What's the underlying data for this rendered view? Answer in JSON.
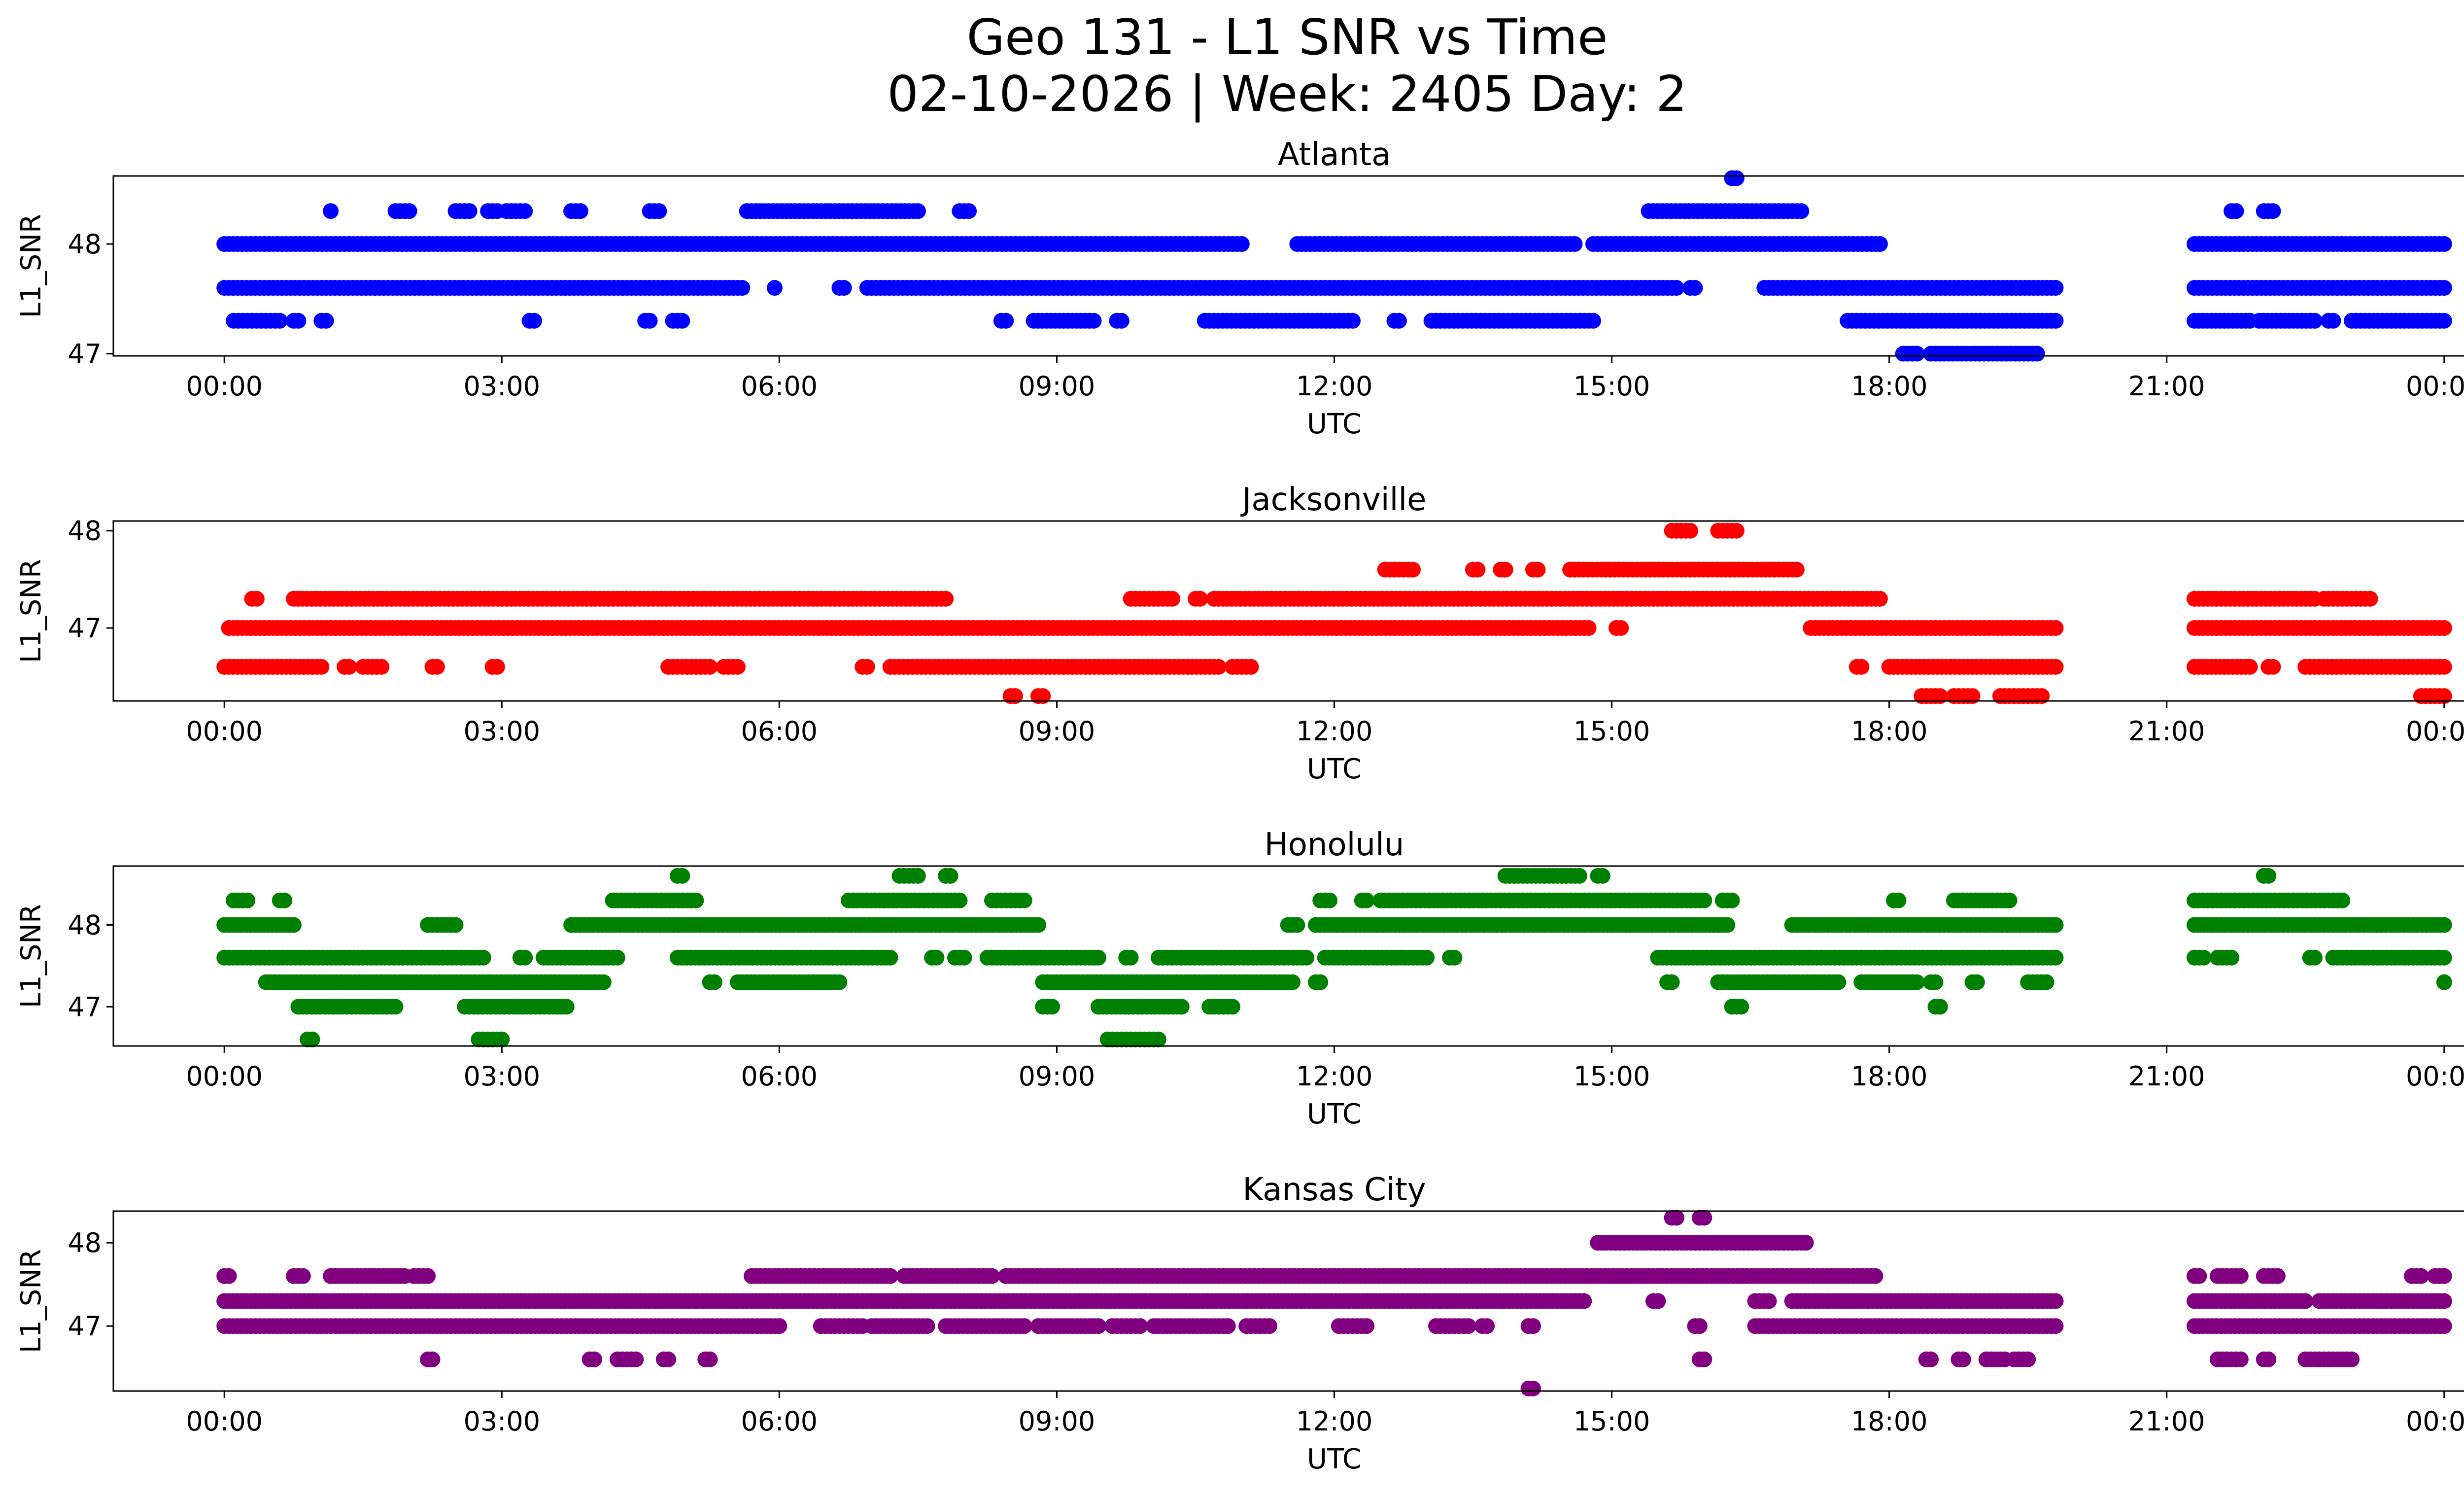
{
  "chart_data": {
    "type": "scatter",
    "title": "Geo 131 - L1 SNR vs Time",
    "subtitle": "02-10-2026 | Week: 2405 Day: 2",
    "xlabel": "UTC",
    "ylabel": "L1_SNR",
    "x_ticks": [
      "00:00",
      "03:00",
      "06:00",
      "09:00",
      "12:00",
      "15:00",
      "18:00",
      "21:00",
      "00:00"
    ],
    "x_range_hours": [
      -1.2,
      25.2
    ],
    "panels": [
      {
        "title": "Atlanta",
        "color": "#0000ff",
        "ylim": [
          46.98,
          48.62
        ],
        "yticks": [
          47,
          48
        ],
        "runs": [
          {
            "y": 48.3,
            "ranges": [
              [
                1.15,
                1.15
              ],
              [
                1.85,
                2.0
              ],
              [
                2.5,
                2.65
              ],
              [
                2.85,
                2.95
              ],
              [
                3.05,
                3.25
              ],
              [
                3.75,
                3.85
              ],
              [
                4.6,
                4.7
              ],
              [
                5.65,
                7.5
              ],
              [
                7.95,
                8.05
              ],
              [
                15.4,
                17.05
              ],
              [
                21.7,
                21.75
              ],
              [
                22.05,
                22.15
              ]
            ]
          },
          {
            "y": 48.6,
            "ranges": [
              [
                16.3,
                16.35
              ]
            ]
          },
          {
            "y": 48.0,
            "ranges": [
              [
                0.0,
                11.0
              ],
              [
                11.6,
                14.6
              ],
              [
                14.8,
                17.9
              ],
              [
                21.3,
                24.0
              ]
            ]
          },
          {
            "y": 47.6,
            "ranges": [
              [
                0.0,
                5.6
              ],
              [
                5.95,
                5.95
              ],
              [
                6.65,
                6.7
              ],
              [
                6.95,
                15.7
              ],
              [
                15.85,
                15.9
              ],
              [
                16.65,
                19.8
              ],
              [
                21.3,
                24.0
              ]
            ]
          },
          {
            "y": 47.3,
            "ranges": [
              [
                0.1,
                0.6
              ],
              [
                0.75,
                0.8
              ],
              [
                1.05,
                1.1
              ],
              [
                3.3,
                3.35
              ],
              [
                4.55,
                4.6
              ],
              [
                4.85,
                4.95
              ],
              [
                8.4,
                8.45
              ],
              [
                8.75,
                9.4
              ],
              [
                9.65,
                9.7
              ],
              [
                10.6,
                12.2
              ],
              [
                12.65,
                12.7
              ],
              [
                13.05,
                14.8
              ],
              [
                17.55,
                19.8
              ],
              [
                21.3,
                21.9
              ],
              [
                22.0,
                22.6
              ],
              [
                22.75,
                22.8
              ],
              [
                23.0,
                24.0
              ]
            ]
          },
          {
            "y": 47.0,
            "ranges": [
              [
                18.15,
                18.3
              ],
              [
                18.45,
                19.6
              ]
            ]
          }
        ]
      },
      {
        "title": "Jacksonville",
        "color": "#ff0000",
        "ylim": [
          46.25,
          48.1
        ],
        "yticks": [
          47,
          48
        ],
        "runs": [
          {
            "y": 48.0,
            "ranges": [
              [
                15.65,
                15.85
              ],
              [
                16.15,
                16.35
              ]
            ]
          },
          {
            "y": 47.6,
            "ranges": [
              [
                12.55,
                12.85
              ],
              [
                13.5,
                13.55
              ],
              [
                13.8,
                13.85
              ],
              [
                14.15,
                14.2
              ],
              [
                14.55,
                17.0
              ]
            ]
          },
          {
            "y": 47.3,
            "ranges": [
              [
                0.3,
                0.35
              ],
              [
                0.75,
                7.8
              ],
              [
                9.8,
                10.25
              ],
              [
                10.5,
                10.55
              ],
              [
                10.7,
                17.9
              ],
              [
                21.3,
                22.6
              ],
              [
                22.7,
                23.2
              ]
            ]
          },
          {
            "y": 47.0,
            "ranges": [
              [
                0.05,
                12.65
              ],
              [
                12.7,
                14.75
              ],
              [
                15.05,
                15.1
              ],
              [
                17.15,
                19.8
              ],
              [
                21.3,
                24.0
              ]
            ]
          },
          {
            "y": 46.6,
            "ranges": [
              [
                0.0,
                1.05
              ],
              [
                1.3,
                1.35
              ],
              [
                1.5,
                1.7
              ],
              [
                2.25,
                2.3
              ],
              [
                2.9,
                2.95
              ],
              [
                4.8,
                5.25
              ],
              [
                5.4,
                5.55
              ],
              [
                6.9,
                6.95
              ],
              [
                7.2,
                10.75
              ],
              [
                10.9,
                11.1
              ],
              [
                17.65,
                17.7
              ],
              [
                18.0,
                19.8
              ],
              [
                21.3,
                21.9
              ],
              [
                22.1,
                22.15
              ],
              [
                22.5,
                24.0
              ]
            ]
          },
          {
            "y": 46.3,
            "ranges": [
              [
                8.5,
                8.55
              ],
              [
                8.8,
                8.85
              ],
              [
                18.35,
                18.55
              ],
              [
                18.7,
                18.9
              ],
              [
                19.2,
                19.65
              ],
              [
                23.75,
                24.0
              ]
            ]
          }
        ]
      },
      {
        "title": "Honolulu",
        "color": "#008000",
        "ylim": [
          46.52,
          48.72
        ],
        "yticks": [
          47,
          48
        ],
        "runs": [
          {
            "y": 48.6,
            "ranges": [
              [
                4.9,
                4.95
              ],
              [
                7.3,
                7.5
              ],
              [
                7.8,
                7.85
              ],
              [
                13.85,
                14.65
              ],
              [
                14.85,
                14.9
              ],
              [
                22.05,
                22.1
              ]
            ]
          },
          {
            "y": 48.3,
            "ranges": [
              [
                0.1,
                0.25
              ],
              [
                0.6,
                0.65
              ],
              [
                4.2,
                5.1
              ],
              [
                6.75,
                7.95
              ],
              [
                8.3,
                8.65
              ],
              [
                11.85,
                11.95
              ],
              [
                12.3,
                12.35
              ],
              [
                12.5,
                16.0
              ],
              [
                16.2,
                16.3
              ],
              [
                18.05,
                18.1
              ],
              [
                18.7,
                19.3
              ],
              [
                21.3,
                22.9
              ]
            ]
          },
          {
            "y": 48.0,
            "ranges": [
              [
                0.0,
                0.75
              ],
              [
                2.2,
                2.5
              ],
              [
                3.75,
                8.8
              ],
              [
                11.5,
                11.6
              ],
              [
                11.8,
                16.25
              ],
              [
                16.95,
                19.8
              ],
              [
                21.3,
                24.0
              ]
            ]
          },
          {
            "y": 47.6,
            "ranges": [
              [
                0.0,
                2.8
              ],
              [
                3.2,
                3.25
              ],
              [
                3.45,
                4.25
              ],
              [
                4.9,
                7.2
              ],
              [
                7.65,
                7.7
              ],
              [
                7.9,
                8.0
              ],
              [
                8.25,
                9.45
              ],
              [
                9.75,
                9.8
              ],
              [
                10.1,
                11.7
              ],
              [
                11.9,
                13.0
              ],
              [
                13.25,
                13.3
              ],
              [
                15.5,
                19.8
              ],
              [
                21.3,
                21.4
              ],
              [
                21.55,
                21.7
              ],
              [
                22.55,
                22.6
              ],
              [
                22.8,
                24.0
              ]
            ]
          },
          {
            "y": 47.3,
            "ranges": [
              [
                0.45,
                4.1
              ],
              [
                5.25,
                5.3
              ],
              [
                5.55,
                6.65
              ],
              [
                8.85,
                11.55
              ],
              [
                11.8,
                11.85
              ],
              [
                15.6,
                15.65
              ],
              [
                16.15,
                17.45
              ],
              [
                17.7,
                18.3
              ],
              [
                18.45,
                18.5
              ],
              [
                18.9,
                18.95
              ],
              [
                19.5,
                19.7
              ],
              [
                24.0,
                24.0
              ]
            ]
          },
          {
            "y": 47.0,
            "ranges": [
              [
                0.8,
                1.85
              ],
              [
                2.6,
                3.7
              ],
              [
                8.85,
                8.95
              ],
              [
                9.45,
                10.35
              ],
              [
                10.65,
                10.9
              ],
              [
                16.3,
                16.4
              ],
              [
                18.5,
                18.55
              ]
            ]
          },
          {
            "y": 46.6,
            "ranges": [
              [
                0.9,
                0.95
              ],
              [
                2.75,
                3.0
              ],
              [
                9.55,
                10.1
              ]
            ]
          }
        ]
      },
      {
        "title": "Kansas City",
        "color": "#800080",
        "ylim": [
          46.22,
          48.38
        ],
        "yticks": [
          47,
          48
        ],
        "runs": [
          {
            "y": 48.3,
            "ranges": [
              [
                15.65,
                15.7
              ],
              [
                15.95,
                16.0
              ]
            ]
          },
          {
            "y": 48.0,
            "ranges": [
              [
                14.85,
                17.1
              ]
            ]
          },
          {
            "y": 47.6,
            "ranges": [
              [
                0.0,
                0.05
              ],
              [
                0.75,
                0.85
              ],
              [
                1.15,
                1.95
              ],
              [
                2.05,
                2.2
              ],
              [
                5.7,
                7.2
              ],
              [
                7.35,
                8.3
              ],
              [
                8.45,
                17.85
              ],
              [
                21.3,
                21.35
              ],
              [
                21.55,
                21.8
              ],
              [
                22.05,
                22.2
              ],
              [
                23.65,
                23.75
              ],
              [
                23.9,
                24.0
              ]
            ]
          },
          {
            "y": 47.3,
            "ranges": [
              [
                0.0,
                14.7
              ],
              [
                15.45,
                15.5
              ],
              [
                16.55,
                16.7
              ],
              [
                16.95,
                19.8
              ],
              [
                21.3,
                22.5
              ],
              [
                22.65,
                24.0
              ]
            ]
          },
          {
            "y": 47.0,
            "ranges": [
              [
                0.0,
                6.0
              ],
              [
                6.45,
                6.9
              ],
              [
                7.0,
                7.6
              ],
              [
                7.8,
                8.65
              ],
              [
                8.8,
                9.45
              ],
              [
                9.6,
                9.9
              ],
              [
                10.05,
                10.85
              ],
              [
                11.05,
                11.3
              ],
              [
                12.05,
                12.35
              ],
              [
                13.1,
                13.45
              ],
              [
                13.6,
                13.65
              ],
              [
                14.1,
                14.15
              ],
              [
                15.9,
                15.95
              ],
              [
                16.55,
                19.8
              ],
              [
                21.3,
                24.0
              ]
            ]
          },
          {
            "y": 46.6,
            "ranges": [
              [
                2.2,
                2.25
              ],
              [
                3.95,
                4.0
              ],
              [
                4.25,
                4.45
              ],
              [
                4.75,
                4.8
              ],
              [
                5.2,
                5.25
              ],
              [
                15.95,
                16.0
              ],
              [
                18.4,
                18.45
              ],
              [
                18.75,
                18.8
              ],
              [
                19.05,
                19.25
              ],
              [
                19.35,
                19.5
              ],
              [
                21.55,
                21.8
              ],
              [
                22.05,
                22.1
              ],
              [
                22.5,
                23.0
              ]
            ]
          },
          {
            "y": 46.25,
            "ranges": [
              [
                14.1,
                14.15
              ]
            ]
          }
        ]
      }
    ]
  }
}
